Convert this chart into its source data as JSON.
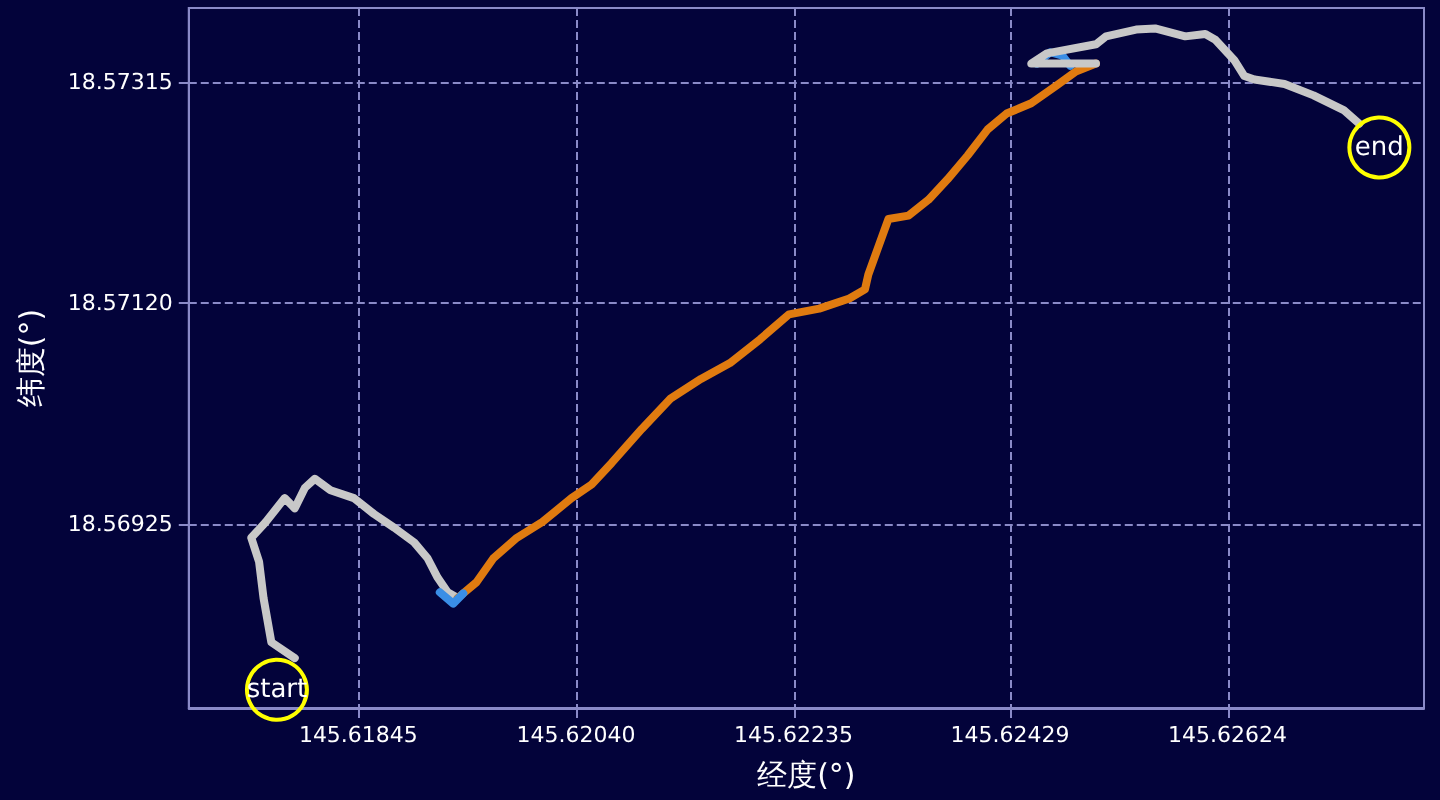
{
  "chart_data": {
    "type": "line",
    "xlabel": "经度(°)",
    "ylabel": "纬度(°)",
    "xlim": [
      145.61693,
      145.628
    ],
    "xticks": [
      145.61845,
      {
        "value": 145.6204,
        "label": "145.62040"
      },
      145.62235,
      145.62429,
      145.62624
    ],
    "ylim": [
      18.56763,
      18.5738
    ],
    "yticks": [
      18.56925,
      {
        "value": 18.5712,
        "label": "18.57120"
      },
      18.57315
    ],
    "grid": true,
    "marker": "none",
    "line_style": "solid",
    "series": [
      {
        "color": "#c8c8c8",
        "x": [
          145.61788,
          145.61767,
          145.6176,
          145.61756,
          145.61749,
          145.61762,
          145.61779,
          145.61788,
          145.61797,
          145.61806,
          145.6182,
          145.61841,
          145.61859,
          145.61877,
          145.61895,
          145.61907,
          145.61916,
          145.61925,
          145.61934
        ],
        "values": [
          18.56807,
          18.56821,
          18.5686,
          18.56892,
          18.56913,
          18.56927,
          18.56948,
          18.56939,
          18.56957,
          18.56965,
          18.56955,
          18.56948,
          18.56934,
          18.56922,
          18.56909,
          18.56895,
          18.56878,
          18.56865,
          18.5686
        ]
      },
      {
        "color": "#e07b10",
        "x": [
          145.61934,
          145.61951,
          145.61966,
          145.61987,
          145.6201,
          145.62036,
          145.62054,
          145.62072,
          145.62099,
          145.62125,
          145.62152,
          145.62178,
          145.62205,
          145.62231,
          145.62258,
          145.62285,
          145.62299,
          145.62302,
          145.6232,
          145.62338,
          145.62356,
          145.62373,
          145.62391,
          145.62409,
          145.62426,
          145.62448,
          145.62471,
          145.62488,
          145.62506
        ],
        "values": [
          18.5686,
          18.56874,
          18.56895,
          18.56913,
          18.56927,
          18.56948,
          18.5696,
          18.56979,
          18.57009,
          18.57036,
          18.57053,
          18.57067,
          18.57088,
          18.5711,
          18.57115,
          18.57124,
          18.57132,
          18.57145,
          18.57194,
          18.57197,
          18.57211,
          18.57229,
          18.5725,
          18.57273,
          18.57287,
          18.57296,
          18.57312,
          18.57324,
          18.57331
        ]
      },
      {
        "color": "#3a8ee6",
        "x": [
          145.61918,
          145.6193,
          145.61939
        ],
        "values": [
          18.56865,
          18.56855,
          18.56864
        ]
      },
      {
        "color": "#3a8ee6",
        "x": [
          145.62453,
          145.62465,
          145.62476,
          145.62483
        ],
        "values": [
          18.57331,
          18.57341,
          18.57338,
          18.57329
        ]
      },
      {
        "color": "#c8c8c8",
        "x": [
          145.62506,
          145.62448,
          145.62462,
          145.62506,
          145.62515,
          145.62542,
          145.62559,
          145.62586,
          145.62604,
          145.62613,
          145.6263,
          145.62639,
          145.62648,
          145.62675,
          145.62701,
          145.62728,
          145.62742
        ],
        "values": [
          18.57331,
          18.57331,
          18.5734,
          18.57348,
          18.57355,
          18.57361,
          18.57362,
          18.57355,
          18.57357,
          18.57352,
          18.57334,
          18.5732,
          18.57317,
          18.57313,
          18.57303,
          18.5729,
          18.57278
        ]
      }
    ],
    "annotations": [
      {
        "text": "start",
        "x": 145.61772,
        "y": 18.56779
      },
      {
        "text": "end",
        "x": 145.6276,
        "y": 18.57257
      }
    ]
  }
}
